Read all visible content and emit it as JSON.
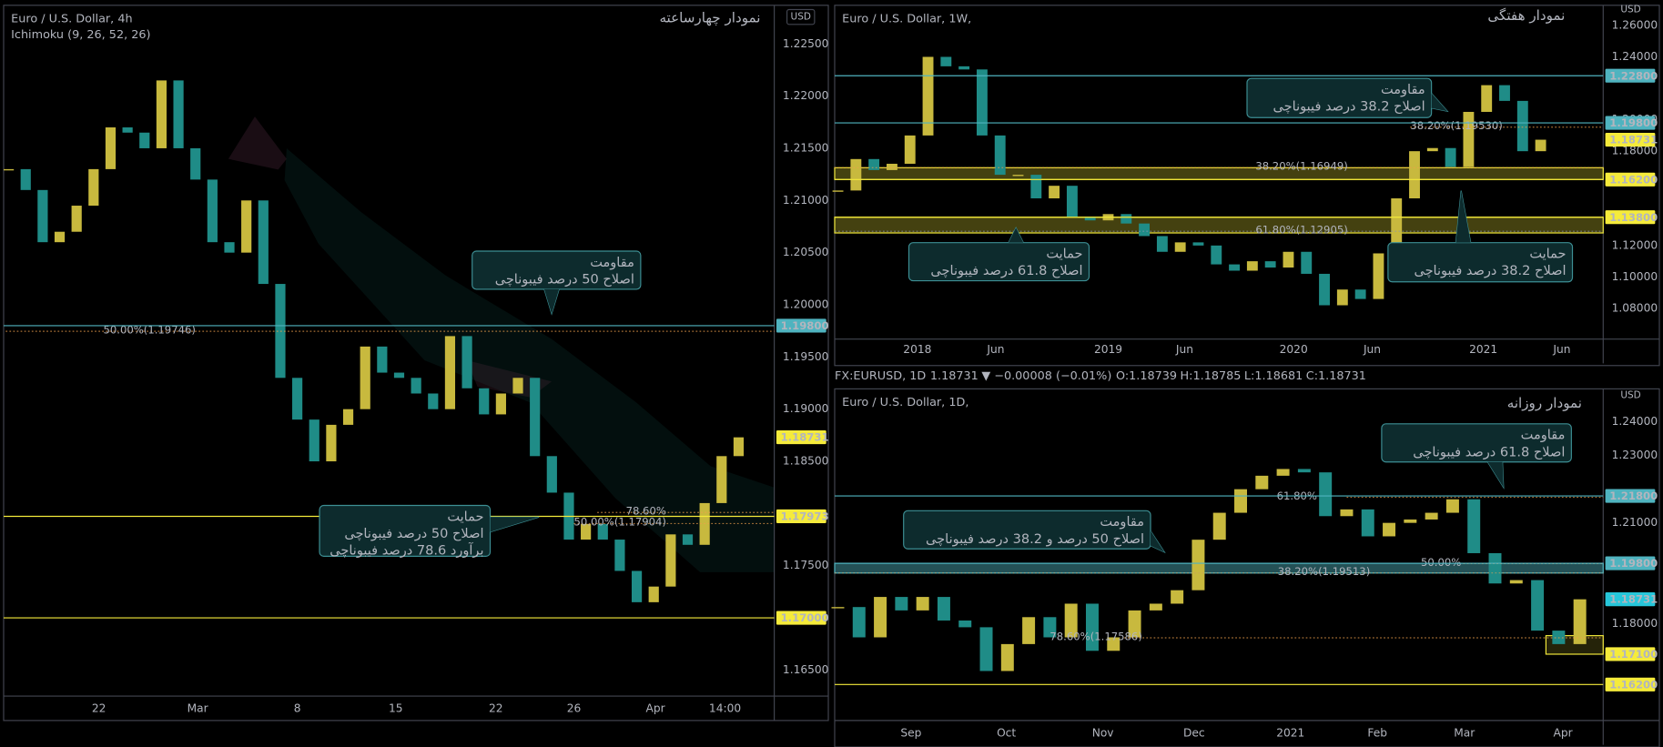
{
  "status_bar": {
    "symbol": "FX:EURUSD, 1D",
    "price": "1.18731",
    "change": "▼ −0.00008 (−0.01%)",
    "open_label": "O:",
    "open": "1.18739",
    "high_label": "H:",
    "high": "1.18785",
    "low_label": "L:",
    "low": "1.18681",
    "close_label": "C:",
    "close": "1.18731"
  },
  "chart_data": [
    {
      "type": "candlestick",
      "title": "Euro / U.S. Dollar, 4h",
      "subtitle": "Ichimoku (9, 26, 52, 26)",
      "title_fa": "نمودار چهارساعته",
      "currency": "USD",
      "up_color": "#c8b93e",
      "down_color": "#1f8c87",
      "values": [
        1.213,
        1.211,
        1.206,
        1.207,
        1.2095,
        1.213,
        1.217,
        1.2165,
        1.215,
        1.2215,
        1.215,
        1.212,
        1.206,
        1.205,
        1.21,
        1.202,
        1.193,
        1.189,
        1.185,
        1.1885,
        1.19,
        1.196,
        1.1935,
        1.193,
        1.1915,
        1.19,
        1.197,
        1.192,
        1.1895,
        1.1915,
        1.193,
        1.1855,
        1.182,
        1.1775,
        1.179,
        1.1775,
        1.1745,
        1.1715,
        1.173,
        1.178,
        1.177,
        1.181,
        1.1855,
        1.1873
      ],
      "xlim": [
        -0.3,
        45.1
      ],
      "xticks": [
        {
          "value": 5.31,
          "label": "22"
        },
        {
          "value": 11.13,
          "label": "Mar"
        },
        {
          "value": 17,
          "label": "8"
        },
        {
          "value": 22.8,
          "label": "15"
        },
        {
          "value": 28.7,
          "label": "22"
        },
        {
          "value": 33.3,
          "label": "26"
        },
        {
          "value": 38.1,
          "label": "Apr"
        },
        {
          "value": 42.2,
          "label": "14:00"
        }
      ],
      "ylim": [
        1.1625,
        1.2287
      ],
      "yticks": [
        {
          "value": 1.225,
          "label": "1.22500"
        },
        {
          "value": 1.22,
          "label": "1.22000"
        },
        {
          "value": 1.215,
          "label": "1.21500"
        },
        {
          "value": 1.21,
          "label": "1.21000"
        },
        {
          "value": 1.205,
          "label": "1.20500"
        },
        {
          "value": 1.2,
          "label": "1.20000"
        },
        {
          "value": 1.195,
          "label": "1.19500"
        },
        {
          "value": 1.19,
          "label": "1.19000"
        },
        {
          "value": 1.185,
          "label": "1.18500"
        },
        {
          "value": 1.175,
          "label": "1.17500"
        },
        {
          "value": 1.165,
          "label": "1.16500"
        }
      ],
      "levels": [
        {
          "value": 1.198,
          "label": "1.19800",
          "color": "#4fb3bf",
          "text_color": "#0b1a1c",
          "line": true
        },
        {
          "value": 1.18731,
          "label": "1.18731",
          "color": "#f5eb3b",
          "text_color": "#000000",
          "line": false
        },
        {
          "value": 1.17973,
          "label": "1.17973",
          "color": "#f5eb3b",
          "text_color": "#000000",
          "line": true
        },
        {
          "value": 1.17,
          "label": "1.17000",
          "color": "#f5eb3b",
          "text_color": "#000000",
          "line": true
        }
      ],
      "zones": [],
      "fibs": [
        {
          "text": "50.00%(1.19746)",
          "price": 1.19746,
          "color": "#f0a04b"
        },
        {
          "text": "78.60%",
          "price": 1.1801,
          "color": "#f0a04b"
        },
        {
          "text": "50.00%(1.17904)",
          "price": 1.17904,
          "color": "#f0a04b"
        }
      ],
      "annotations": [
        [
          "مقاومت",
          "اصلاح 50 درصد فیبوناچی"
        ],
        [
          "حمایت",
          "اصلاح 50 درصد فیبوناچی",
          "برآورد 78.6 درصد فیبوناچی"
        ]
      ]
    },
    {
      "type": "candlestick",
      "title": "Euro / U.S. Dollar, 1W,",
      "title_fa": "نمودار هفتگی",
      "currency": "USD",
      "up_color": "#c8b93e",
      "down_color": "#1f8c87",
      "values": [
        1.155,
        1.175,
        1.168,
        1.172,
        1.19,
        1.24,
        1.234,
        1.232,
        1.19,
        1.165,
        1.165,
        1.15,
        1.158,
        1.138,
        1.136,
        1.14,
        1.134,
        1.126,
        1.116,
        1.122,
        1.12,
        1.108,
        1.104,
        1.11,
        1.106,
        1.116,
        1.102,
        1.082,
        1.092,
        1.086,
        1.115,
        1.15,
        1.18,
        1.182,
        1.17,
        1.205,
        1.222,
        1.212,
        1.18,
        1.1873
      ],
      "xlim": [
        -0.18,
        42.47
      ],
      "xticks": [
        {
          "value": 4.41,
          "label": "2018"
        },
        {
          "value": 8.76,
          "label": "Jun"
        },
        {
          "value": 15,
          "label": "2019"
        },
        {
          "value": 19.24,
          "label": "Jun"
        },
        {
          "value": 25.29,
          "label": "2020"
        },
        {
          "value": 29.65,
          "label": "Jun"
        },
        {
          "value": 35.82,
          "label": "2021"
        },
        {
          "value": 40.18,
          "label": "Jun"
        }
      ],
      "ylim": [
        1.0605,
        1.2728
      ],
      "yticks": [
        {
          "value": 1.26,
          "label": "1.26000"
        },
        {
          "value": 1.24,
          "label": "1.24000"
        },
        {
          "value": 1.2,
          "label": "1.20000"
        },
        {
          "value": 1.18,
          "label": "1.18000"
        },
        {
          "value": 1.12,
          "label": "1.12000"
        },
        {
          "value": 1.1,
          "label": "1.10000"
        },
        {
          "value": 1.08,
          "label": "1.08000"
        }
      ],
      "levels": [
        {
          "value": 1.228,
          "label": "1.22800",
          "color": "#4fb3bf",
          "text_color": "#0b1a1c",
          "line": true
        },
        {
          "value": 1.198,
          "label": "1.19800",
          "color": "#4fb3bf",
          "text_color": "#0b1a1c",
          "line": true
        },
        {
          "value": 1.18731,
          "label": "1.18731",
          "color": "#f5eb3b",
          "text_color": "#000000",
          "line": false
        },
        {
          "value": 1.162,
          "label": "1.16200",
          "color": "#f5eb3b",
          "text_color": "#000000",
          "line": true
        },
        {
          "value": 1.138,
          "label": "1.13800",
          "color": "#f5eb3b",
          "text_color": "#000000",
          "line": true
        }
      ],
      "zones": [
        {
          "from": 1.162,
          "to": 1.1695,
          "fill": "rgba(245,235,59,0.28)",
          "stroke": "#f5eb3b"
        },
        {
          "from": 1.128,
          "to": 1.138,
          "fill": "rgba(245,235,59,0.28)",
          "stroke": "#f5eb3b"
        }
      ],
      "fibs": [
        {
          "text": "38.20%(1.19530)",
          "price": 1.1953,
          "color": "#f0a04b"
        },
        {
          "text": "38.20%(1.16949)",
          "price": 1.16949,
          "color": "#f0a04b"
        },
        {
          "text": "61.80%(1.12905)",
          "price": 1.12905,
          "color": "#8a95b0"
        }
      ],
      "annotations": [
        [
          "مقاومت",
          "اصلاح 38.2 درصد فیبوناچی"
        ],
        [
          "حمایت",
          "اصلاح 61.8 درصد فیبوناچی"
        ],
        [
          "حمایت",
          "اصلاح 38.2 درصد فیبوناچی"
        ]
      ]
    },
    {
      "type": "candlestick",
      "title": "Euro / U.S. Dollar, 1D,",
      "title_fa": "نمودار روزانه",
      "currency": "USD",
      "up_color": "#c8b93e",
      "down_color": "#1f8c87",
      "values": [
        1.185,
        1.176,
        1.188,
        1.184,
        1.188,
        1.181,
        1.179,
        1.166,
        1.174,
        1.182,
        1.176,
        1.186,
        1.172,
        1.176,
        1.184,
        1.186,
        1.19,
        1.205,
        1.213,
        1.22,
        1.224,
        1.226,
        1.225,
        1.212,
        1.214,
        1.206,
        1.21,
        1.211,
        1.213,
        1.217,
        1.201,
        1.192,
        1.193,
        1.178,
        1.174,
        1.1873
      ],
      "xlim": [
        -0.15,
        36.1
      ],
      "xticks": [
        {
          "value": 3.45,
          "label": "Sep"
        },
        {
          "value": 7.95,
          "label": "Oct"
        },
        {
          "value": 12.5,
          "label": "Nov"
        },
        {
          "value": 16.8,
          "label": "Dec"
        },
        {
          "value": 21.35,
          "label": "2021"
        },
        {
          "value": 25.45,
          "label": "Feb"
        },
        {
          "value": 29.55,
          "label": "Mar"
        },
        {
          "value": 34.2,
          "label": "Apr"
        }
      ],
      "ylim": [
        1.1513,
        1.2498
      ],
      "yticks": [
        {
          "value": 1.24,
          "label": "1.24000"
        },
        {
          "value": 1.23,
          "label": "1.23000"
        },
        {
          "value": 1.21,
          "label": "1.21000"
        },
        {
          "value": 1.18,
          "label": "1.18000"
        }
      ],
      "levels": [
        {
          "value": 1.218,
          "label": "1.21800",
          "color": "#4fb3bf",
          "text_color": "#0b1a1c",
          "line": true
        },
        {
          "value": 1.198,
          "label": "1.19800",
          "color": "#4fb3bf",
          "text_color": "#0b1a1c",
          "line": true
        },
        {
          "value": 1.18731,
          "label": "1.18731",
          "color": "#26c6da",
          "text_color": "#000000",
          "line": false
        },
        {
          "value": 1.171,
          "label": "1.17100",
          "color": "#f5eb3b",
          "text_color": "#000000",
          "line": false
        },
        {
          "value": 1.162,
          "label": "1.16200",
          "color": "#f5eb3b",
          "text_color": "#000000",
          "line": true
        }
      ],
      "zones": [
        {
          "from": 1.1951,
          "to": 1.198,
          "fill": "rgba(79,179,191,0.45)",
          "stroke": "#4fb3bf"
        },
        {
          "from": 1.171,
          "to": 1.1765,
          "x": [
            33.4,
            36.1
          ],
          "fill": "rgba(245,235,59,0.15)",
          "stroke": "#f5eb3b"
        }
      ],
      "fibs": [
        {
          "text": "61.80%",
          "price": 1.2176,
          "color": "#f0a04b"
        },
        {
          "text": "38.20%(1.19513)",
          "price": 1.19513,
          "color": "#c8a060"
        },
        {
          "text": "50.00%",
          "price": 1.1979,
          "color": "#f0a04b"
        },
        {
          "text": "78.60%(1.17586)",
          "price": 1.17586,
          "color": "#f0a04b"
        }
      ],
      "annotations": [
        [
          "مقاومت",
          "اصلاح 61.8 درصد فیبوناچی"
        ],
        [
          "مقاومت",
          "اصلاح 50 درصد و 38.2 درصد فیبوناچی"
        ]
      ]
    }
  ]
}
